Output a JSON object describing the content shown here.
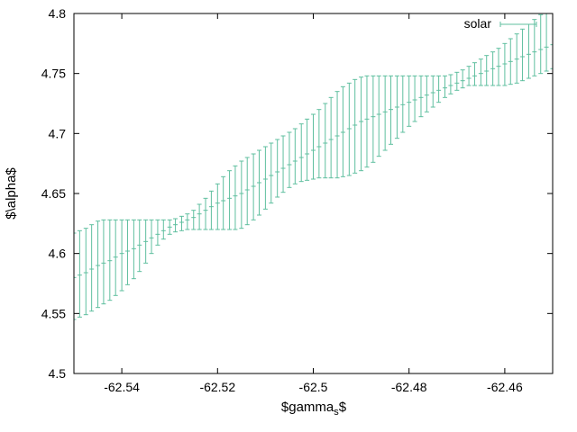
{
  "chart_data": {
    "type": "scatter",
    "title": "",
    "xlabel_main": "$gamma",
    "xlabel_sub": "s",
    "xlabel_end": "$",
    "ylabel": "$\\alpha$",
    "xlim": [
      -62.55,
      -62.45
    ],
    "ylim": [
      4.5,
      4.8
    ],
    "xticks": [
      -62.54,
      -62.52,
      -62.5,
      -62.48,
      -62.46
    ],
    "xtick_labels": [
      "-62.54",
      "-62.52",
      "-62.5",
      "-62.48",
      "-62.46"
    ],
    "yticks": [
      4.5,
      4.55,
      4.6,
      4.65,
      4.7,
      4.75,
      4.8
    ],
    "ytick_labels": [
      "4.5",
      "4.55",
      "4.6",
      "4.65",
      "4.7",
      "4.75",
      "4.8"
    ],
    "grid": false,
    "legend_position": "top-right",
    "series": [
      {
        "name": "solar",
        "color": "#5fbf9f",
        "style": "yerrorbars",
        "x": [
          -62.55,
          -62.5488,
          -62.5475,
          -62.5463,
          -62.545,
          -62.5438,
          -62.5425,
          -62.5413,
          -62.54,
          -62.5388,
          -62.5375,
          -62.5363,
          -62.535,
          -62.5338,
          -62.5325,
          -62.5313,
          -62.53,
          -62.5288,
          -62.5275,
          -62.5263,
          -62.525,
          -62.5238,
          -62.5225,
          -62.5213,
          -62.52,
          -62.5188,
          -62.5175,
          -62.5163,
          -62.515,
          -62.5138,
          -62.5125,
          -62.5113,
          -62.51,
          -62.5088,
          -62.5075,
          -62.5063,
          -62.505,
          -62.5038,
          -62.5025,
          -62.5013,
          -62.5,
          -62.4988,
          -62.4975,
          -62.4963,
          -62.495,
          -62.4938,
          -62.4925,
          -62.4913,
          -62.49,
          -62.4888,
          -62.4875,
          -62.4863,
          -62.485,
          -62.4838,
          -62.4825,
          -62.4813,
          -62.48,
          -62.4788,
          -62.4775,
          -62.4763,
          -62.475,
          -62.4738,
          -62.4725,
          -62.4713,
          -62.47,
          -62.4688,
          -62.4675,
          -62.4663,
          -62.465,
          -62.4638,
          -62.4625,
          -62.4613,
          -62.46,
          -62.4588,
          -62.4575,
          -62.4563,
          -62.455,
          -62.4538,
          -62.4525,
          -62.4513,
          -62.45
        ],
        "y": [
          4.58,
          4.582,
          4.584,
          4.587,
          4.59,
          4.592,
          4.594,
          4.597,
          4.6,
          4.602,
          4.604,
          4.607,
          4.61,
          4.613,
          4.616,
          4.619,
          4.622,
          4.624,
          4.626,
          4.628,
          4.63,
          4.633,
          4.636,
          4.639,
          4.642,
          4.644,
          4.646,
          4.648,
          4.65,
          4.653,
          4.656,
          4.659,
          4.662,
          4.665,
          4.668,
          4.671,
          4.674,
          4.677,
          4.68,
          4.683,
          4.686,
          4.689,
          4.692,
          4.695,
          4.698,
          4.701,
          4.704,
          4.707,
          4.71,
          4.712,
          4.714,
          4.716,
          4.718,
          4.72,
          4.722,
          4.724,
          4.726,
          4.728,
          4.73,
          4.732,
          4.734,
          4.736,
          4.738,
          4.74,
          4.742,
          4.744,
          4.746,
          4.748,
          4.75,
          4.752,
          4.754,
          4.756,
          4.758,
          4.76,
          4.762,
          4.764,
          4.766,
          4.768,
          4.77,
          4.772,
          4.774
        ],
        "ylow": [
          4.545,
          4.547,
          4.549,
          4.552,
          4.555,
          4.558,
          4.561,
          4.565,
          4.569,
          4.574,
          4.579,
          4.585,
          4.592,
          4.6,
          4.607,
          4.612,
          4.616,
          4.618,
          4.619,
          4.62,
          4.62,
          4.62,
          4.62,
          4.62,
          4.62,
          4.62,
          4.62,
          4.62,
          4.621,
          4.624,
          4.628,
          4.632,
          4.637,
          4.642,
          4.647,
          4.651,
          4.655,
          4.658,
          4.66,
          4.661,
          4.662,
          4.663,
          4.663,
          4.663,
          4.663,
          4.664,
          4.665,
          4.667,
          4.669,
          4.672,
          4.676,
          4.681,
          4.686,
          4.691,
          4.696,
          4.701,
          4.706,
          4.71,
          4.714,
          4.718,
          4.722,
          4.726,
          4.73,
          4.733,
          4.736,
          4.738,
          4.74,
          4.74,
          4.74,
          4.74,
          4.74,
          4.74,
          4.74,
          4.741,
          4.742,
          4.744,
          4.746,
          4.748,
          4.75,
          4.752,
          4.754
        ],
        "yhigh": [
          4.617,
          4.619,
          4.621,
          4.624,
          4.627,
          4.628,
          4.628,
          4.628,
          4.628,
          4.628,
          4.628,
          4.628,
          4.628,
          4.628,
          4.628,
          4.628,
          4.628,
          4.629,
          4.631,
          4.633,
          4.636,
          4.641,
          4.646,
          4.652,
          4.658,
          4.664,
          4.669,
          4.673,
          4.677,
          4.68,
          4.683,
          4.686,
          4.689,
          4.692,
          4.695,
          4.698,
          4.701,
          4.704,
          4.708,
          4.712,
          4.716,
          4.72,
          4.725,
          4.73,
          4.735,
          4.739,
          4.742,
          4.745,
          4.747,
          4.748,
          4.748,
          4.748,
          4.748,
          4.748,
          4.748,
          4.748,
          4.748,
          4.748,
          4.748,
          4.748,
          4.748,
          4.748,
          4.748,
          4.749,
          4.751,
          4.753,
          4.756,
          4.759,
          4.762,
          4.765,
          4.768,
          4.771,
          4.775,
          4.779,
          4.783,
          4.787,
          4.791,
          4.795,
          4.799,
          4.803,
          4.807
        ]
      }
    ]
  }
}
